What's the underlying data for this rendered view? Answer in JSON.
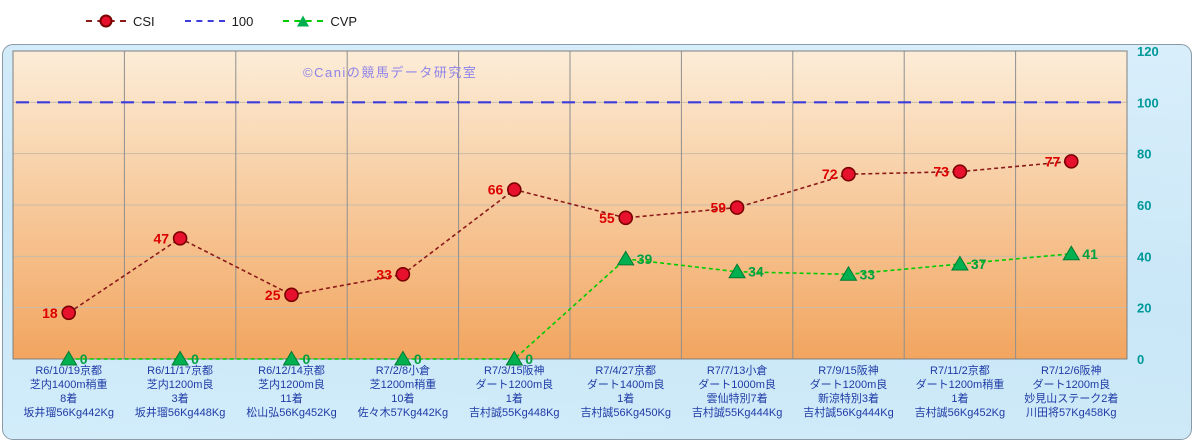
{
  "legend": {
    "items": [
      {
        "label": "CSI"
      },
      {
        "label": "100"
      },
      {
        "label": "CVP"
      }
    ]
  },
  "watermark": "©Caniの競馬データ研究室",
  "chart_data": {
    "type": "line",
    "title": "",
    "xlabel": "",
    "ylabel": "",
    "ylim": [
      0,
      120
    ],
    "yticks": [
      0,
      20,
      40,
      60,
      80,
      100,
      120
    ],
    "y_axis_side": "right",
    "grid": true,
    "legend_position": "top",
    "axis_label_color": "#1f3ba6",
    "ytick_color": "#009999",
    "plot_bg_top": "#fcedd8",
    "plot_bg_bottom": "#f2a55f",
    "watermark_color": "#8f83ea",
    "categories": [
      [
        "R6/10/19京都",
        "芝内1400m稍重",
        "8着",
        "坂井瑠56Kg442Kg"
      ],
      [
        "R6/11/17京都",
        "芝内1200m良",
        "3着",
        "坂井瑠56Kg448Kg"
      ],
      [
        "R6/12/14京都",
        "芝内1200m良",
        "11着",
        "松山弘56Kg452Kg"
      ],
      [
        "R7/2/8小倉",
        "芝1200m稍重",
        "10着",
        "佐々木57Kg442Kg"
      ],
      [
        "R7/3/15阪神",
        "ダート1200m良",
        "1着",
        "吉村誠55Kg448Kg"
      ],
      [
        "R7/4/27京都",
        "ダート1400m良",
        "1着",
        "吉村誠56Kg450Kg"
      ],
      [
        "R7/7/13小倉",
        "ダート1000m良",
        "雲仙特別7着",
        "吉村誠55Kg444Kg"
      ],
      [
        "R7/9/15阪神",
        "ダート1200m良",
        "新涼特別3着",
        "吉村誠56Kg444Kg"
      ],
      [
        "R7/11/2京都",
        "ダート1200m稍重",
        "1着",
        "吉村誠56Kg452Kg"
      ],
      [
        "R7/12/6阪神",
        "ダート1200m良",
        "妙見山ステーク2着",
        "川田将57Kg458Kg"
      ]
    ],
    "series": [
      {
        "name": "CSI",
        "type": "line",
        "values": [
          18,
          47,
          25,
          33,
          66,
          55,
          59,
          72,
          73,
          77
        ],
        "color": "#8b1a1a",
        "marker": "circle",
        "marker_fill": "#e8112d",
        "marker_stroke": "#7a0000",
        "label_color": "#dd0000",
        "label_side": "left"
      },
      {
        "name": "100",
        "type": "threshold",
        "value": 100,
        "color": "#3c3cdc"
      },
      {
        "name": "CVP",
        "type": "line",
        "values": [
          0,
          0,
          0,
          0,
          0,
          39,
          34,
          33,
          37,
          41
        ],
        "color": "#00cc00",
        "marker": "triangle",
        "marker_fill": "#00b050",
        "marker_stroke": "#007a30",
        "label_color": "#00a040",
        "label_side": "right"
      }
    ]
  }
}
